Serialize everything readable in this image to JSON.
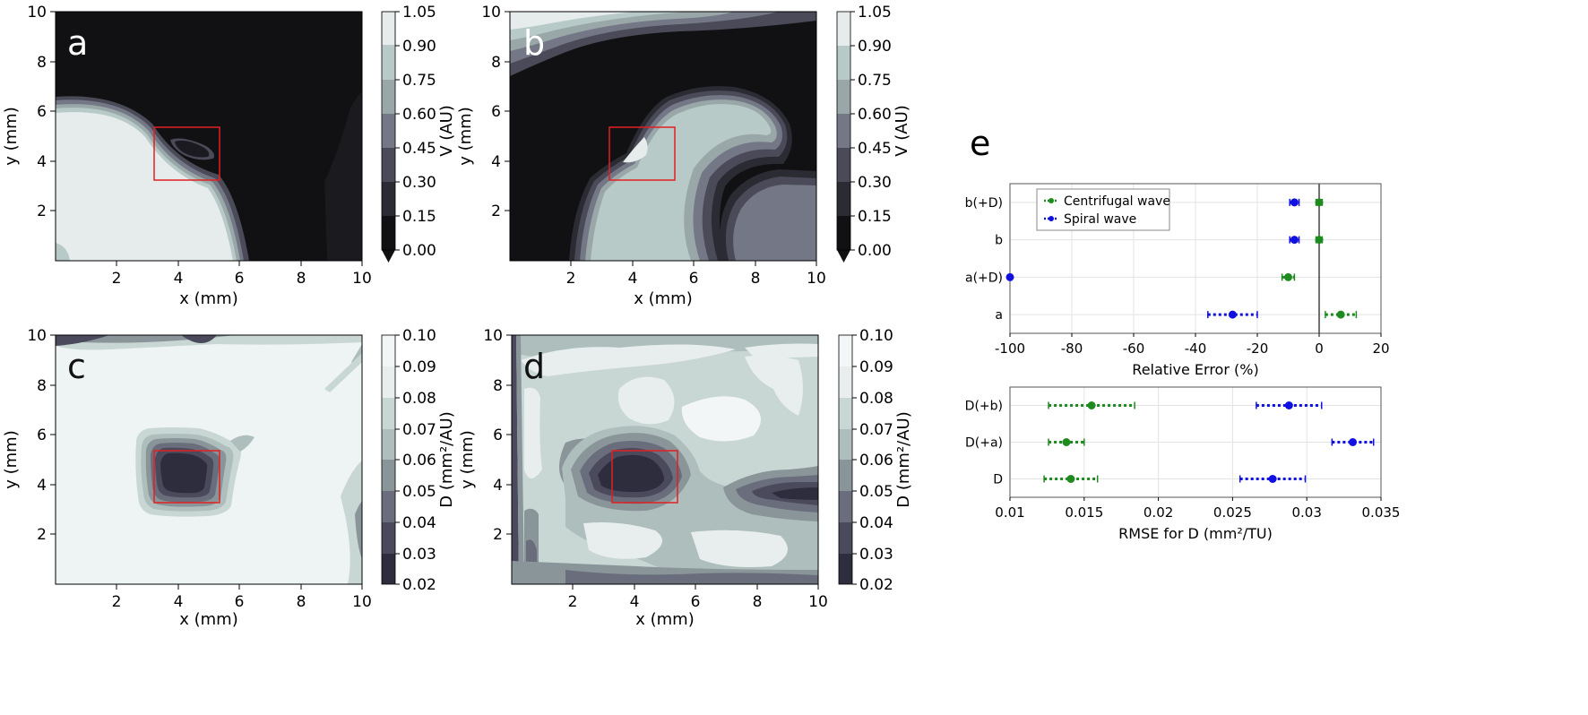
{
  "colors": {
    "contour_v": [
      "#111114",
      "#2b2b33",
      "#4a4a58",
      "#747886",
      "#9aa7a8",
      "#b8cac8",
      "#e6ecec"
    ],
    "contour_d": [
      "#2d2d3d",
      "#4a4a5c",
      "#6a6e7c",
      "#8a959a",
      "#aebebc",
      "#c8d6d4",
      "#e8eeee",
      "#f3f6f6"
    ],
    "roi": "#e02020",
    "centrifugal": "#1f8a1f",
    "spiral": "#1010e0",
    "zero_line": "#333333",
    "grid": "#e3e3e3"
  },
  "panels": [
    {
      "letter": "a",
      "letter_color": "#ffffff",
      "xlabel": "x (mm)",
      "ylabel": "y (mm)",
      "xticks": [
        "2",
        "4",
        "6",
        "8",
        "10"
      ],
      "yticks": [
        "2",
        "4",
        "6",
        "8",
        "10"
      ],
      "colorbar": {
        "label": "V (AU)",
        "ticks": [
          "1.05",
          "0.90",
          "0.75",
          "0.60",
          "0.45",
          "0.30",
          "0.15",
          "0.00"
        ]
      }
    },
    {
      "letter": "b",
      "letter_color": "#ffffff",
      "xlabel": "x (mm)",
      "ylabel": "y (mm)",
      "xticks": [
        "2",
        "4",
        "6",
        "8",
        "10"
      ],
      "yticks": [
        "2",
        "4",
        "6",
        "8",
        "10"
      ],
      "colorbar": {
        "label": "V (AU)",
        "ticks": [
          "1.05",
          "0.90",
          "0.75",
          "0.60",
          "0.45",
          "0.30",
          "0.15",
          "0.00"
        ]
      }
    },
    {
      "letter": "c",
      "letter_color": "#111111",
      "xlabel": "x (mm)",
      "ylabel": "y (mm)",
      "xticks": [
        "2",
        "4",
        "6",
        "8",
        "10"
      ],
      "yticks": [
        "2",
        "4",
        "6",
        "8",
        "10"
      ],
      "colorbar": {
        "label": "D (mm²/AU)",
        "ticks": [
          "0.10",
          "0.09",
          "0.08",
          "0.07",
          "0.06",
          "0.05",
          "0.04",
          "0.03",
          "0.02"
        ]
      }
    },
    {
      "letter": "d",
      "letter_color": "#111111",
      "xlabel": "x (mm)",
      "ylabel": "y (mm)",
      "xticks": [
        "2",
        "4",
        "6",
        "8",
        "10"
      ],
      "yticks": [
        "2",
        "4",
        "6",
        "8",
        "10"
      ],
      "colorbar": {
        "label": "D (mm²/AU)",
        "ticks": [
          "0.10",
          "0.09",
          "0.08",
          "0.07",
          "0.06",
          "0.05",
          "0.04",
          "0.03",
          "0.02"
        ]
      }
    }
  ],
  "panel_e": {
    "letter": "e"
  },
  "chart_data": [
    {
      "type": "scatter",
      "xlabel": "Relative Error (%)",
      "xlim": [
        -100,
        20
      ],
      "xticks": [
        "-100",
        "-80",
        "-60",
        "-40",
        "-20",
        "0",
        "20"
      ],
      "categories": [
        "b(+D)",
        "b",
        "a(+D)",
        "a"
      ],
      "legend": [
        "Centrifugal wave",
        "Spiral wave"
      ],
      "series": [
        {
          "name": "Centrifugal wave",
          "values": [
            0,
            0,
            -10,
            7
          ],
          "err": [
            1,
            1,
            2,
            5
          ]
        },
        {
          "name": "Spiral wave",
          "values": [
            -8,
            -8,
            -100,
            -28
          ],
          "err": [
            1.5,
            1.5,
            0.5,
            8
          ]
        }
      ]
    },
    {
      "type": "scatter",
      "xlabel": "RMSE for D (mm²/TU)",
      "xlim": [
        0.01,
        0.035
      ],
      "xticks": [
        "0.01",
        "0.015",
        "0.02",
        "0.025",
        "0.03",
        "0.035"
      ],
      "categories": [
        "D(+b)",
        "D(+a)",
        "D"
      ],
      "series": [
        {
          "name": "Centrifugal wave",
          "values": [
            0.0155,
            0.0138,
            0.0141
          ],
          "err": [
            0.0029,
            0.0012,
            0.0018
          ]
        },
        {
          "name": "Spiral wave",
          "values": [
            0.0288,
            0.0331,
            0.0277
          ],
          "err": [
            0.0022,
            0.0014,
            0.0022
          ]
        }
      ]
    }
  ]
}
